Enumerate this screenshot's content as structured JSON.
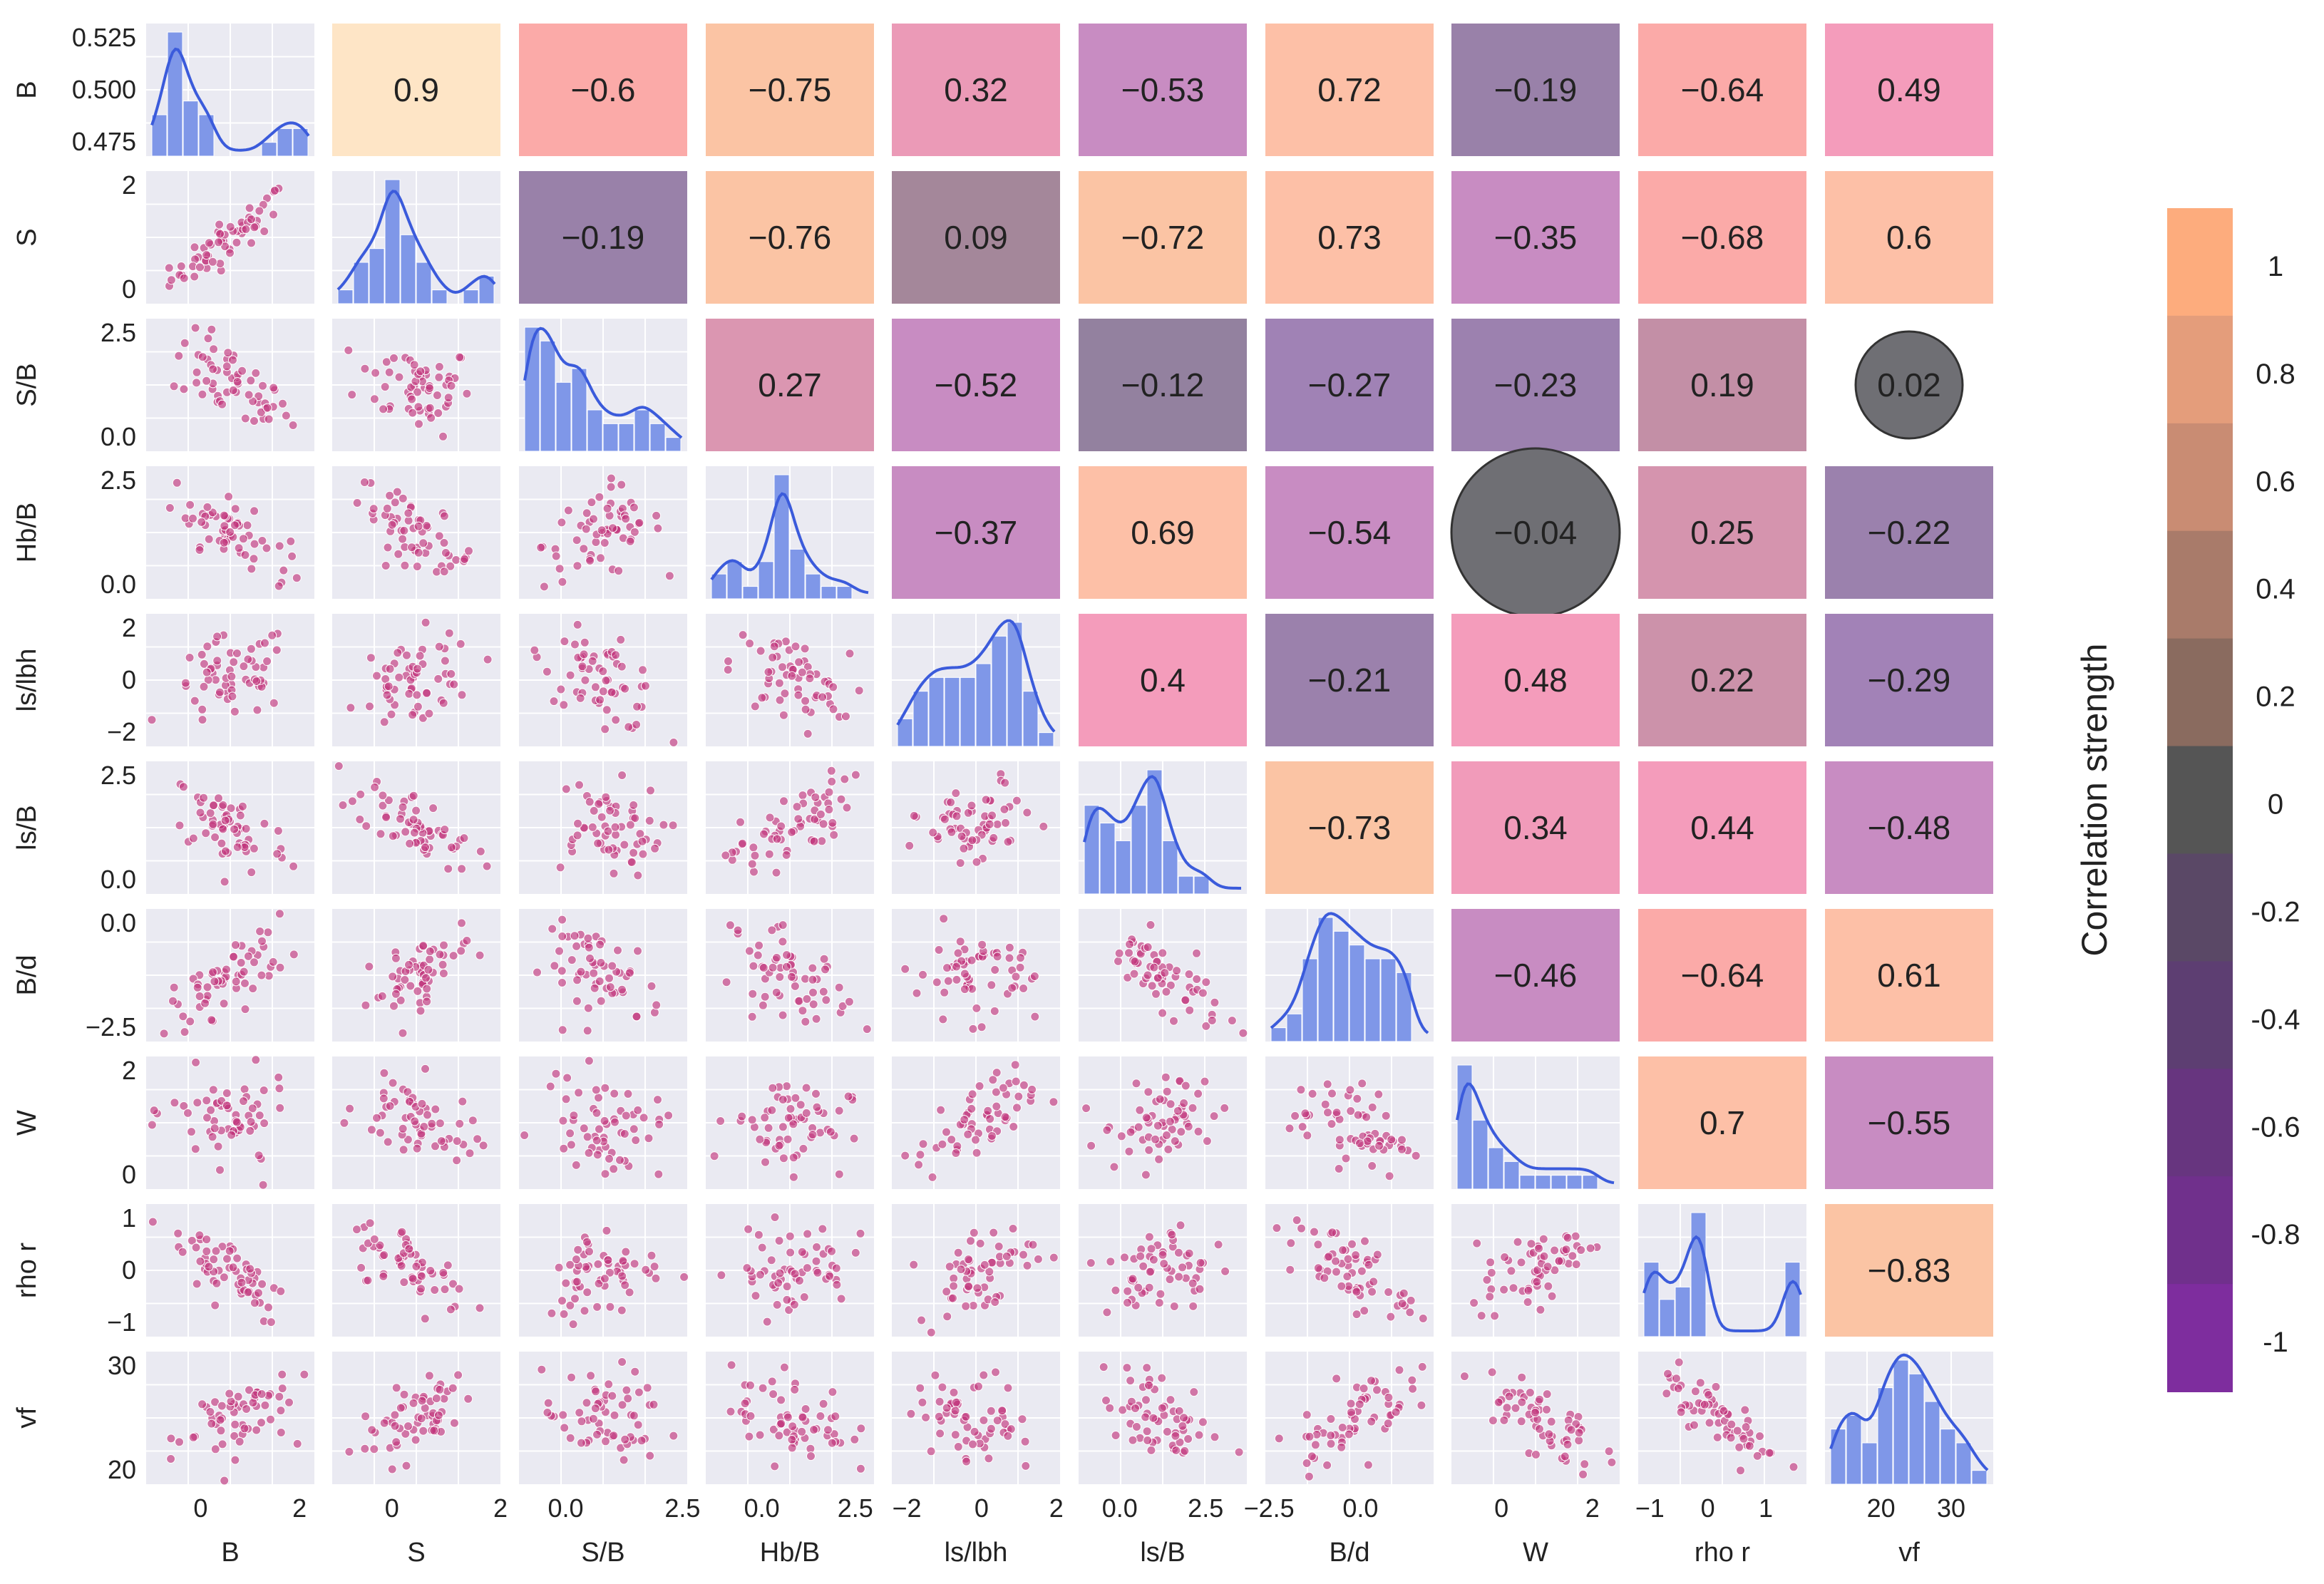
{
  "chart_data": {
    "type": "pairplot",
    "variables": [
      "B",
      "S",
      "S/B",
      "Hb/B",
      "ls/lbh",
      "ls/B",
      "B/d",
      "W",
      "rho r",
      "vf"
    ],
    "correlations": {
      "0-1": 0.9,
      "0-2": -0.6,
      "0-3": -0.75,
      "0-4": 0.32,
      "0-5": -0.53,
      "0-6": 0.72,
      "0-7": -0.19,
      "0-8": -0.64,
      "0-9": 0.49,
      "1-2": -0.19,
      "1-3": -0.76,
      "1-4": 0.09,
      "1-5": -0.72,
      "1-6": 0.73,
      "1-7": -0.35,
      "1-8": -0.68,
      "1-9": 0.6,
      "2-3": 0.27,
      "2-4": -0.52,
      "2-5": -0.12,
      "2-6": -0.27,
      "2-7": -0.23,
      "2-8": 0.19,
      "2-9": 0.02,
      "3-4": -0.37,
      "3-5": 0.69,
      "3-6": -0.54,
      "3-7": -0.04,
      "3-8": 0.25,
      "3-9": -0.22,
      "4-5": 0.4,
      "4-6": -0.21,
      "4-7": 0.48,
      "4-8": 0.22,
      "4-9": -0.29,
      "5-6": -0.73,
      "5-7": 0.34,
      "5-8": 0.44,
      "5-9": -0.48,
      "6-7": -0.46,
      "6-8": -0.64,
      "6-9": 0.61,
      "7-8": 0.7,
      "7-9": -0.55,
      "8-9": -0.83
    },
    "correlation_labels": {
      "0-1": "0.9",
      "0-2": "−0.6",
      "0-3": "−0.75",
      "0-4": "0.32",
      "0-5": "−0.53",
      "0-6": "0.72",
      "0-7": "−0.19",
      "0-8": "−0.64",
      "0-9": "0.49",
      "1-2": "−0.19",
      "1-3": "−0.76",
      "1-4": "0.09",
      "1-5": "−0.72",
      "1-6": "0.73",
      "1-7": "−0.35",
      "1-8": "−0.68",
      "1-9": "0.6",
      "2-3": "0.27",
      "2-4": "−0.52",
      "2-5": "−0.12",
      "2-6": "−0.27",
      "2-7": "−0.23",
      "2-8": "0.19",
      "2-9": "0.02",
      "3-4": "−0.37",
      "3-5": "0.69",
      "3-6": "−0.54",
      "3-7": "−0.04",
      "3-8": "0.25",
      "3-9": "−0.22",
      "4-5": "0.4",
      "4-6": "−0.21",
      "4-7": "0.48",
      "4-8": "0.22",
      "4-9": "−0.29",
      "5-6": "−0.73",
      "5-7": "0.34",
      "5-8": "0.44",
      "5-9": "−0.48",
      "6-7": "−0.46",
      "6-8": "−0.64",
      "6-9": "0.61",
      "7-8": "0.7",
      "7-9": "−0.55",
      "8-9": "−0.83"
    },
    "axes": {
      "B": {
        "range": [
          -1.1,
          2.3
        ],
        "ticks": [
          0,
          2
        ],
        "tick_labels": [
          "0",
          "2"
        ]
      },
      "S": {
        "range": [
          -1.1,
          2.0
        ],
        "ticks": [
          0,
          2
        ],
        "tick_labels": [
          "0",
          "2"
        ]
      },
      "S/B": {
        "range": [
          -1.0,
          2.6
        ],
        "ticks": [
          0.0,
          2.5
        ],
        "tick_labels": [
          "0.0",
          "2.5"
        ]
      },
      "Hb/B": {
        "range": [
          -1.5,
          3.0
        ],
        "ticks": [
          0.0,
          2.5
        ],
        "tick_labels": [
          "0.0",
          "2.5"
        ]
      },
      "ls/lbh": {
        "range": [
          -2.4,
          2.1
        ],
        "ticks": [
          -2,
          0,
          2
        ],
        "tick_labels": [
          "−2",
          "0",
          "2"
        ]
      },
      "ls/B": {
        "range": [
          -1.2,
          3.7
        ],
        "ticks": [
          0.0,
          2.5
        ],
        "tick_labels": [
          "0.0",
          "2.5"
        ]
      },
      "B/d": {
        "range": [
          -2.6,
          2.0
        ],
        "ticks": [
          -2.5,
          0.0
        ],
        "tick_labels": [
          "−2.5",
          "0.0"
        ]
      },
      "W": {
        "range": [
          -1.1,
          2.6
        ],
        "ticks": [
          0,
          2
        ],
        "tick_labels": [
          "0",
          "2"
        ]
      },
      "rho r": {
        "range": [
          -1.2,
          1.7
        ],
        "ticks": [
          -1,
          0,
          1
        ],
        "tick_labels": [
          "−1",
          "0",
          "1"
        ]
      },
      "vf": {
        "range": [
          12,
          36
        ],
        "ticks": [
          20,
          30
        ],
        "tick_labels": [
          "20",
          "30"
        ]
      }
    },
    "y_axes": {
      "B": {
        "range": [
          0.472,
          0.528
        ],
        "ticks": [
          0.475,
          0.5,
          0.525
        ],
        "tick_labels": [
          "0.475",
          "0.500",
          "0.525"
        ]
      },
      "S": {
        "ticks": [
          0,
          2
        ],
        "tick_labels": [
          "0",
          "2"
        ]
      },
      "S/B": {
        "ticks": [
          0.0,
          2.5
        ],
        "tick_labels": [
          "0.0",
          "2.5"
        ]
      },
      "Hb/B": {
        "ticks": [
          0.0,
          2.5
        ],
        "tick_labels": [
          "0.0",
          "2.5"
        ]
      },
      "ls/lbh": {
        "ticks": [
          -2,
          0,
          2
        ],
        "tick_labels": [
          "−2",
          "0",
          "2"
        ]
      },
      "ls/B": {
        "ticks": [
          0.0,
          2.5
        ],
        "tick_labels": [
          "0.0",
          "2.5"
        ]
      },
      "B/d": {
        "ticks": [
          -2.5,
          0.0
        ],
        "tick_labels": [
          "−2.5",
          "0.0"
        ]
      },
      "W": {
        "ticks": [
          0,
          2
        ],
        "tick_labels": [
          "0",
          "2"
        ]
      },
      "rho r": {
        "ticks": [
          -1,
          0,
          1
        ],
        "tick_labels": [
          "−1",
          "0",
          "1"
        ]
      },
      "vf": {
        "ticks": [
          20,
          30
        ],
        "tick_labels": [
          "20",
          "30"
        ]
      }
    },
    "histograms": {
      "B": [
        3,
        9,
        4,
        3,
        0,
        0,
        0,
        1,
        2,
        2
      ],
      "S": [
        1,
        3,
        4,
        9,
        5,
        3,
        1,
        0,
        1,
        2
      ],
      "S/B": [
        9,
        8,
        5,
        6,
        3,
        2,
        2,
        3,
        2,
        1
      ],
      "Hb/B": [
        2,
        3,
        1,
        3,
        10,
        4,
        2,
        1,
        1,
        0
      ],
      "ls/lbh": [
        2,
        4,
        5,
        5,
        5,
        6,
        8,
        9,
        4,
        1
      ],
      "ls/B": [
        5,
        4,
        3,
        5,
        7,
        3,
        1,
        1,
        0,
        0
      ],
      "B/d": [
        1,
        2,
        6,
        9,
        8,
        7,
        6,
        6,
        5,
        0
      ],
      "W": [
        9,
        5,
        3,
        2,
        1,
        1,
        1,
        1,
        1,
        0
      ],
      "rho r": [
        6,
        3,
        4,
        10,
        0,
        0,
        0,
        0,
        0,
        6
      ],
      "vf": [
        4,
        5,
        3,
        7,
        9,
        8,
        6,
        4,
        3,
        1
      ]
    },
    "histogram_color": "#7f97e8",
    "kde_color": "#3b5bdb",
    "scatter_color": "#c2357c",
    "panel_background": "#eaeaf2",
    "colorbar": {
      "label": "Correlation strength",
      "ticks": [
        "1",
        "0.8",
        "0.6",
        "0.4",
        "0.2",
        "0",
        "-0.2",
        "-0.4",
        "-0.6",
        "-0.8",
        "-1"
      ],
      "colors_top_to_bottom": [
        "#fdac7d",
        "#e49d7b",
        "#c98c73",
        "#a97b6a",
        "#8a6b5f",
        "#555555",
        "#5a4866",
        "#5d3e72",
        "#67357f",
        "#70308c",
        "#7e2d9e"
      ]
    }
  }
}
